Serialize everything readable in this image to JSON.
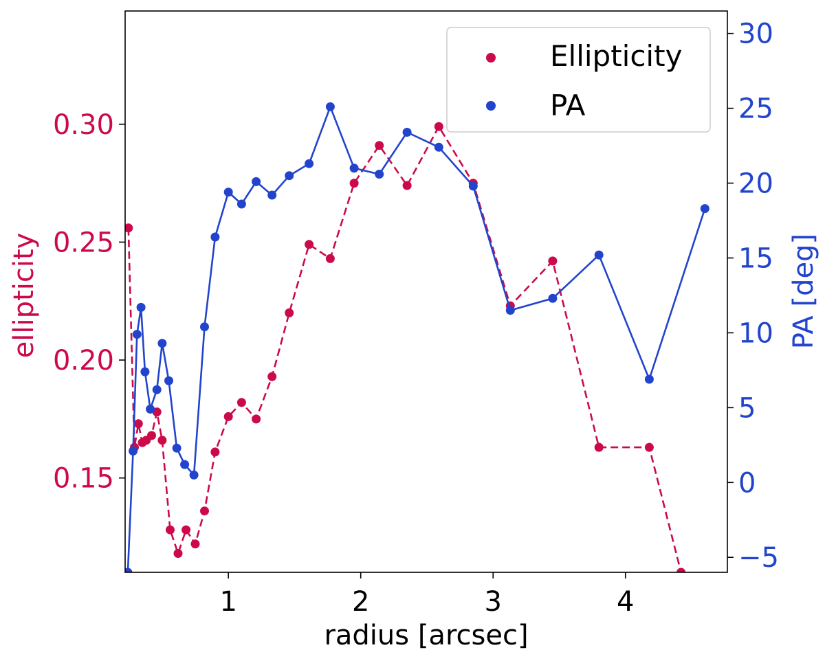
{
  "chart_data": {
    "type": "line",
    "xlabel": "radius [arcsec]",
    "xlim": [
      0.22,
      4.77
    ],
    "xticks": [
      1,
      2,
      3,
      4
    ],
    "y_left": {
      "label": "ellipticity",
      "ylim": [
        0.11,
        0.348
      ],
      "ticks": [
        0.15,
        0.2,
        0.25,
        0.3
      ],
      "tick_labels": [
        "0.15",
        "0.20",
        "0.25",
        "0.30"
      ],
      "color": "#cc0a4a"
    },
    "y_right": {
      "label": "PA [deg]",
      "ylim": [
        -6.0,
        31.5
      ],
      "ticks": [
        -5,
        0,
        5,
        10,
        15,
        20,
        25,
        30
      ],
      "tick_labels": [
        "−5",
        "0",
        "5",
        "10",
        "15",
        "20",
        "25",
        "30"
      ],
      "color": "#2244cc"
    },
    "grid": false,
    "legend": {
      "position": "top-right",
      "entries": [
        "Ellipticity",
        "PA"
      ]
    },
    "series": [
      {
        "name": "Ellipticity",
        "axis": "left",
        "color": "#cc0a4a",
        "line_style": "dashed",
        "x": [
          0.245,
          0.29,
          0.32,
          0.35,
          0.38,
          0.42,
          0.46,
          0.5,
          0.56,
          0.62,
          0.68,
          0.75,
          0.82,
          0.9,
          1.0,
          1.1,
          1.21,
          1.33,
          1.46,
          1.61,
          1.77,
          1.95,
          2.14,
          2.35,
          2.59,
          2.85,
          3.13,
          3.45,
          3.8,
          4.18,
          4.42
        ],
        "values": [
          0.256,
          0.163,
          0.173,
          0.165,
          0.166,
          0.168,
          0.178,
          0.166,
          0.128,
          0.118,
          0.128,
          0.122,
          0.136,
          0.161,
          0.176,
          0.182,
          0.175,
          0.193,
          0.22,
          0.249,
          0.243,
          0.275,
          0.291,
          0.274,
          0.299,
          0.275,
          0.223,
          0.242,
          0.163,
          0.163,
          0.11
        ]
      },
      {
        "name": "PA",
        "axis": "right",
        "color": "#2244cc",
        "line_style": "solid",
        "x": [
          0.24,
          0.28,
          0.31,
          0.34,
          0.37,
          0.41,
          0.46,
          0.5,
          0.55,
          0.61,
          0.67,
          0.74,
          0.82,
          0.9,
          1.0,
          1.1,
          1.21,
          1.33,
          1.46,
          1.61,
          1.77,
          1.95,
          2.14,
          2.35,
          2.59,
          2.85,
          3.13,
          3.45,
          3.8,
          4.18,
          4.6
        ],
        "values": [
          -6.0,
          2.1,
          9.9,
          11.7,
          7.4,
          4.9,
          6.2,
          9.3,
          6.8,
          2.3,
          1.2,
          0.5,
          10.4,
          16.4,
          19.4,
          18.6,
          20.1,
          19.2,
          20.5,
          21.3,
          25.1,
          21.0,
          20.6,
          23.4,
          22.4,
          19.8,
          11.5,
          12.3,
          15.2,
          6.9,
          18.3
        ]
      }
    ]
  }
}
